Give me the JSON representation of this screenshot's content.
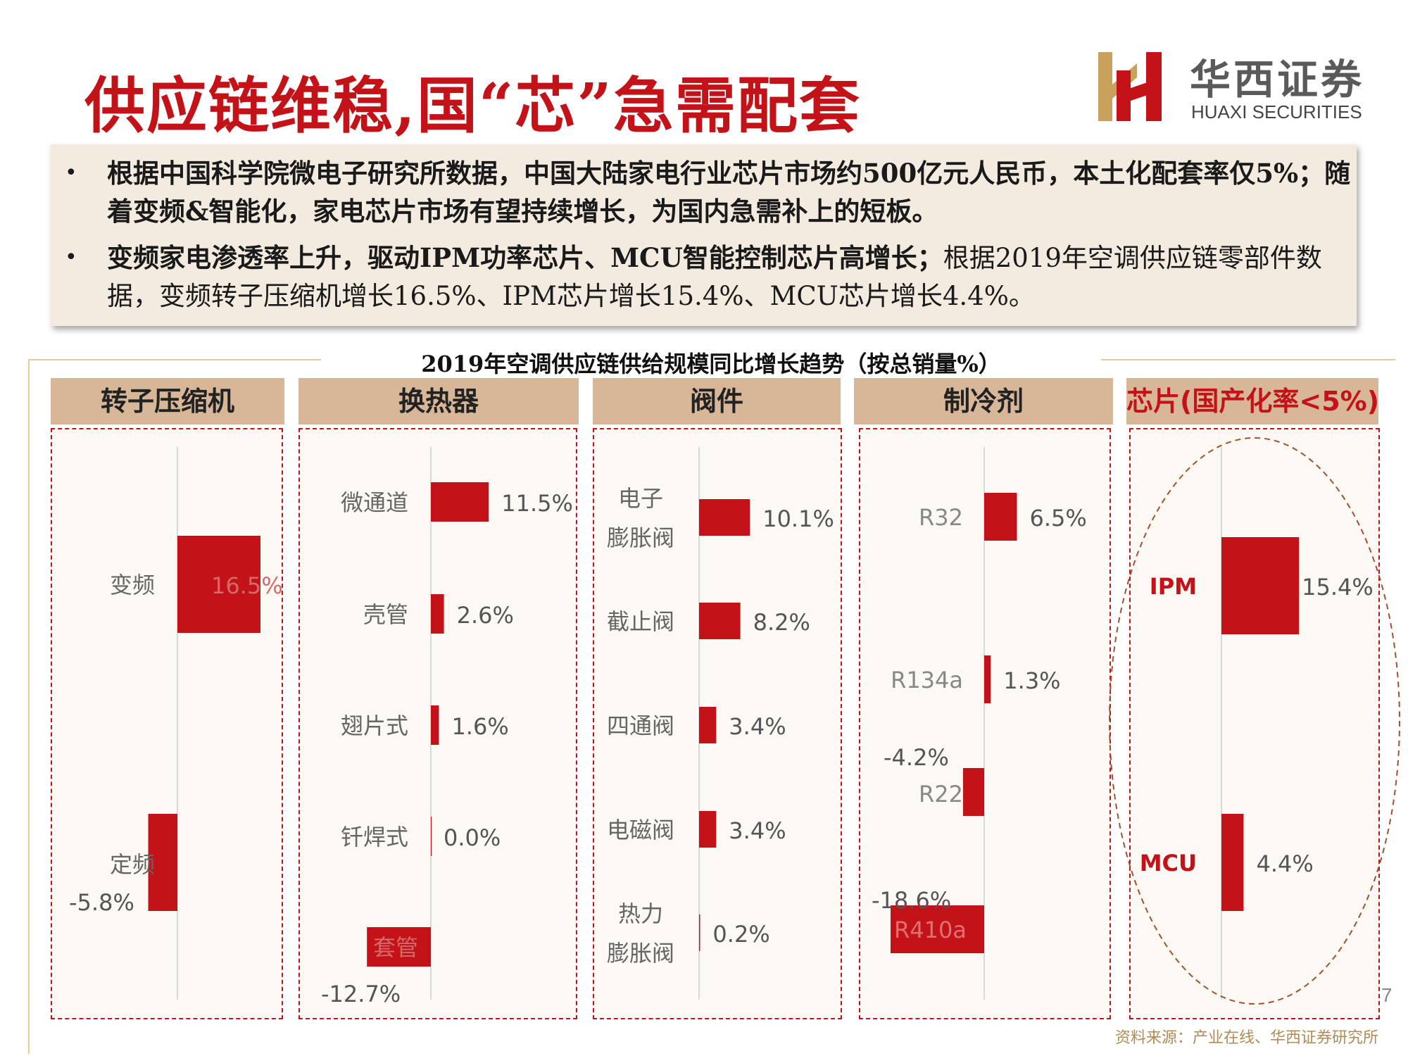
{
  "title": "供应链维稳,国“芯”急需配套",
  "logo": {
    "cn": "华西证券",
    "en": "HUAXI SECURITIES"
  },
  "summary": {
    "bullets": [
      {
        "text": "根据中国科学院微电子研究所数据，中国大陆家电行业芯片市场约500亿元人民币，本土化配套率仅5%；随着变频&智能化，家电芯片市场有望持续增长，为国内急需补上的短板。"
      },
      {
        "strong": "变频家电渗透率上升，驱动IPM功率芯片、MCU智能控制芯片高增长；",
        "text": "根据2019年空调供应链零部件数据，变频转子压缩机增长16.5%、IPM芯片增长15.4%、MCU芯片增长4.4%。"
      }
    ]
  },
  "chart_title": "2019年空调供应链供给规模同比增长趋势（按总销量%）",
  "source": "资料来源：产业在线、华西证券研究所",
  "page_number": "7",
  "colors": {
    "bar": "#c41219",
    "header_bg": "#d7b797",
    "panel_bg": "#fcf8f3",
    "title": "#c41219"
  },
  "chart_data": [
    {
      "type": "bar",
      "orientation": "horizontal",
      "title": "转子压缩机",
      "categories": [
        "变频",
        "定频"
      ],
      "values": [
        16.5,
        -5.8
      ],
      "data_labels": [
        "16.5%",
        "-5.8%"
      ],
      "xlim": [
        -20,
        20
      ]
    },
    {
      "type": "bar",
      "orientation": "horizontal",
      "title": "换热器",
      "categories": [
        "微通道",
        "壳管",
        "翅片式",
        "钎焊式",
        "套管"
      ],
      "values": [
        11.5,
        2.6,
        1.6,
        0.0,
        -12.7
      ],
      "data_labels": [
        "11.5%",
        "2.6%",
        "1.6%",
        "0.0%",
        "-12.7%"
      ],
      "xlim": [
        -20,
        20
      ]
    },
    {
      "type": "bar",
      "orientation": "horizontal",
      "title": "阀件",
      "categories": [
        [
          "电子",
          "膨胀阀"
        ],
        [
          "截止阀"
        ],
        [
          "四通阀"
        ],
        [
          "电磁阀"
        ],
        [
          "热力",
          "膨胀阀"
        ]
      ],
      "values": [
        10.1,
        8.2,
        3.4,
        3.4,
        0.2
      ],
      "data_labels": [
        "10.1%",
        "8.2%",
        "3.4%",
        "3.4%",
        "0.2%"
      ],
      "xlim": [
        -20,
        20
      ]
    },
    {
      "type": "bar",
      "orientation": "horizontal",
      "title": "制冷剂",
      "categories": [
        "R32",
        "R134a",
        "R22",
        "R410a"
      ],
      "values": [
        6.5,
        1.3,
        -4.2,
        -18.6
      ],
      "data_labels": [
        "6.5%",
        "1.3%",
        "-4.2%",
        "-18.6%"
      ],
      "xlim": [
        -20,
        20
      ]
    },
    {
      "type": "bar",
      "orientation": "horizontal",
      "title": "芯片(国产化率<5%)",
      "categories": [
        "IPM",
        "MCU"
      ],
      "values": [
        15.4,
        4.4
      ],
      "data_labels": [
        "15.4%",
        "4.4%"
      ],
      "xlim": [
        -20,
        20
      ]
    }
  ]
}
